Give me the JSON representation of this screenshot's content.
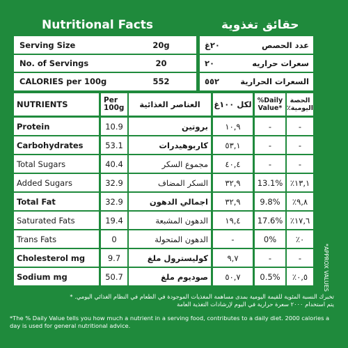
{
  "title_en": "Nutritional Facts",
  "title_ar": "حقائق تغذوية",
  "serving": [
    {
      "label_en": "Serving Size",
      "value_en": "20g",
      "value_ar": "٢٠غ",
      "label_ar": "عدد الحصص"
    },
    {
      "label_en": "No. of Servings",
      "value_en": "20",
      "value_ar": "٢٠",
      "label_ar": "سعرات حراريه"
    },
    {
      "label_en": "CALORIES per 100g",
      "value_en": "552",
      "value_ar": "٥٥٢",
      "label_ar": "السعرات الحرارية"
    }
  ],
  "headers": {
    "nutrients": "NUTRIENTS",
    "per100": "Per 100g",
    "ar_elements": "العناصر الغذائية",
    "ar_per100": "لكل ١٠٠غ",
    "dv": "%Daily Value*",
    "ar_dv": "الحصة اليومية٪"
  },
  "rows": [
    {
      "en": "Protein",
      "bold": true,
      "val": "10.9",
      "ar": "بروتين",
      "ar_bold": true,
      "ar_val": "١٠,٩",
      "dv": "-",
      "ar_dv": "-"
    },
    {
      "en": "Carbohydrates",
      "bold": true,
      "val": "53.1",
      "ar": "كاربوهيدرات",
      "ar_bold": true,
      "ar_val": "٥٣,١",
      "dv": "-",
      "ar_dv": "-"
    },
    {
      "en": "Total Sugars",
      "bold": false,
      "val": "40.4",
      "ar": "مجموع السكر",
      "ar_bold": false,
      "ar_val": "٤٠,٤",
      "dv": "-",
      "ar_dv": "-"
    },
    {
      "en": "Added Sugars",
      "bold": false,
      "val": "32.9",
      "ar": "السكر المضاف",
      "ar_bold": false,
      "ar_val": "٣٢,٩",
      "dv": "13.1%",
      "ar_dv": "٪١٣,١"
    },
    {
      "en": "Total Fat",
      "bold": true,
      "val": "32.9",
      "ar": "اجمالي الدهون",
      "ar_bold": true,
      "ar_val": "٣٢,٩",
      "dv": "9.8%",
      "ar_dv": "٪٩,٨"
    },
    {
      "en": "Saturated Fats",
      "bold": false,
      "val": "19.4",
      "ar": "الدهون المشبعة",
      "ar_bold": false,
      "ar_val": "١٩,٤",
      "dv": "17.6%",
      "ar_dv": "٪١٧,٦"
    },
    {
      "en": "Trans Fats",
      "bold": false,
      "val": "0",
      "ar": "الدهون المتحولة",
      "ar_bold": false,
      "ar_val": "-",
      "dv": "0%",
      "ar_dv": "٪٠"
    },
    {
      "en": "Cholesterol mg",
      "bold": true,
      "val": "9.7",
      "ar": "كوليسترول ملغ",
      "ar_bold": true,
      "ar_val": "٩,٧",
      "dv": "-",
      "ar_dv": "-"
    },
    {
      "en": "Sodium mg",
      "bold": true,
      "val": "50.7",
      "ar": "صوديوم ملغ",
      "ar_bold": true,
      "ar_val": "٥٠,٧",
      "dv": "0.5%",
      "ar_dv": "٪٠,٥"
    }
  ],
  "approx": "*APPROX VALUES",
  "footer_ar_1": "تخبرك النسبة المئوية للقيمة اليومية بمدى مساهمة المغذيات الموجودة في الطعام في النظام الغذائي اليومي. *",
  "footer_ar_2": "يتم استخدام ٢٠٠٠ سعرة حرارية في اليوم لإرشادات التغذية العامة",
  "footer_en": "*The % Daily Value tells you how much a nutrient in a serving food, contributes to a daily diet. 2000 calories a day is used for general nutritional advice."
}
